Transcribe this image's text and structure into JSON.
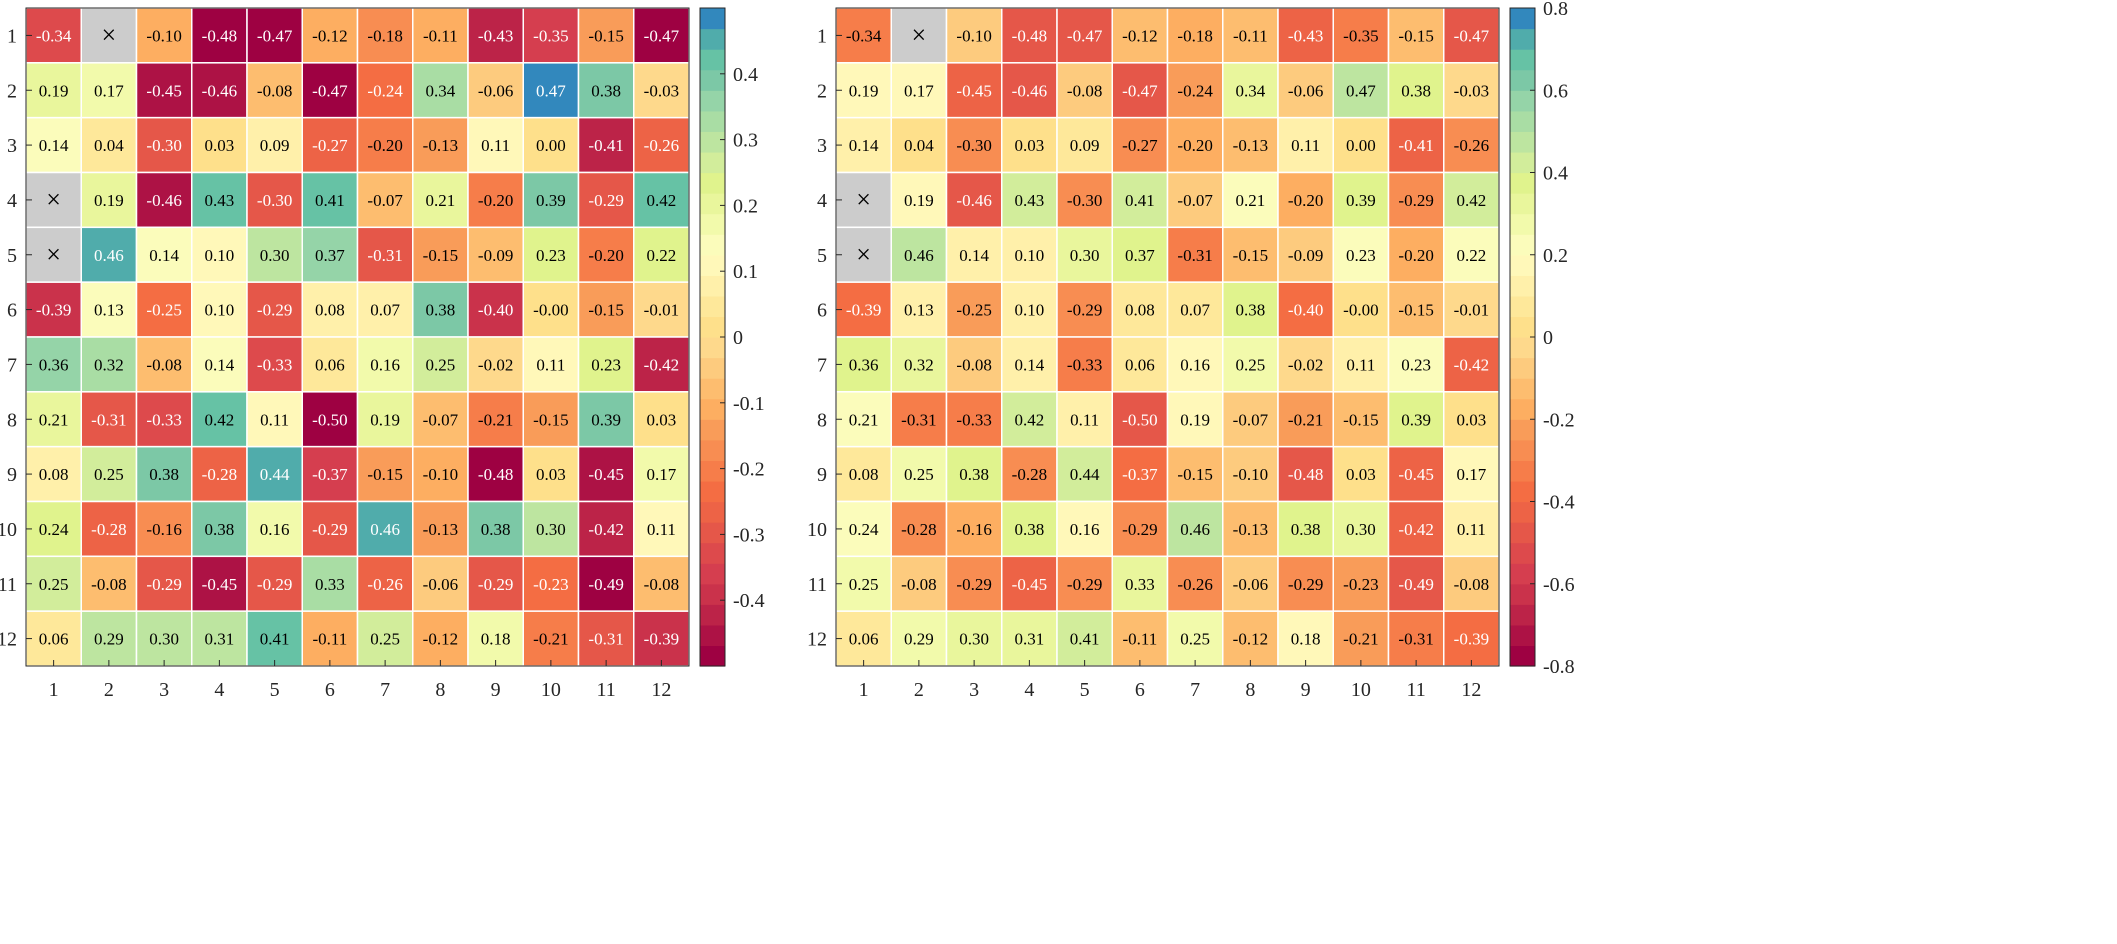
{
  "missing_mark": "×",
  "colormap": {
    "name": "Spectral (reversed)",
    "levels": 32,
    "colors": [
      "#9e0142",
      "#ad1245",
      "#bc2348",
      "#ca324b",
      "#d53e4f",
      "#dd4a4c",
      "#e55749",
      "#ed6346",
      "#f46d43",
      "#f67d4a",
      "#f88d52",
      "#f99c59",
      "#fdae61",
      "#fdbd6f",
      "#fdcb7e",
      "#fed98c",
      "#fee08b",
      "#fee89a",
      "#fff0aa",
      "#fff8b9",
      "#fbfcbb",
      "#f2faab",
      "#e9f69c",
      "#e0f38d",
      "#d2ed9b",
      "#bde5a0",
      "#a9dda4",
      "#95d4a8",
      "#7cc8a6",
      "#66c2a5",
      "#50acab",
      "#3288bd"
    ]
  },
  "chart_data": [
    {
      "type": "heatmap",
      "title": "",
      "xlabel": "",
      "ylabel": "",
      "x_ticks": [
        "1",
        "2",
        "3",
        "4",
        "5",
        "6",
        "7",
        "8",
        "9",
        "10",
        "11",
        "12"
      ],
      "y_ticks": [
        "1",
        "2",
        "3",
        "4",
        "5",
        "6",
        "7",
        "8",
        "9",
        "10",
        "11",
        "12"
      ],
      "clim": [
        -0.5,
        0.5
      ],
      "colorbar_ticks": [
        "0.4",
        "0.3",
        "0.2",
        "0.1",
        "0",
        "-0.1",
        "-0.2",
        "-0.3",
        "-0.4"
      ],
      "colorbar_tick_values": [
        0.4,
        0.3,
        0.2,
        0.1,
        0,
        -0.1,
        -0.2,
        -0.3,
        -0.4
      ],
      "labels": [
        [
          "-0.34",
          "×",
          "-0.10",
          "-0.48",
          "-0.47",
          "-0.12",
          "-0.18",
          "-0.11",
          "-0.43",
          "-0.35",
          "-0.15",
          "-0.47"
        ],
        [
          "0.19",
          "0.17",
          "-0.45",
          "-0.46",
          "-0.08",
          "-0.47",
          "-0.24",
          "0.34",
          "-0.06",
          "0.47",
          "0.38",
          "-0.03"
        ],
        [
          "0.14",
          "0.04",
          "-0.30",
          "0.03",
          "0.09",
          "-0.27",
          "-0.20",
          "-0.13",
          "0.11",
          "0.00",
          "-0.41",
          "-0.26"
        ],
        [
          "×",
          "0.19",
          "-0.46",
          "0.43",
          "-0.30",
          "0.41",
          "-0.07",
          "0.21",
          "-0.20",
          "0.39",
          "-0.29",
          "0.42"
        ],
        [
          "×",
          "0.46",
          "0.14",
          "0.10",
          "0.30",
          "0.37",
          "-0.31",
          "-0.15",
          "-0.09",
          "0.23",
          "-0.20",
          "0.22"
        ],
        [
          "-0.39",
          "0.13",
          "-0.25",
          "0.10",
          "-0.29",
          "0.08",
          "0.07",
          "0.38",
          "-0.40",
          "-0.00",
          "-0.15",
          "-0.01"
        ],
        [
          "0.36",
          "0.32",
          "-0.08",
          "0.14",
          "-0.33",
          "0.06",
          "0.16",
          "0.25",
          "-0.02",
          "0.11",
          "0.23",
          "-0.42"
        ],
        [
          "0.21",
          "-0.31",
          "-0.33",
          "0.42",
          "0.11",
          "-0.50",
          "0.19",
          "-0.07",
          "-0.21",
          "-0.15",
          "0.39",
          "0.03"
        ],
        [
          "0.08",
          "0.25",
          "0.38",
          "-0.28",
          "0.44",
          "-0.37",
          "-0.15",
          "-0.10",
          "-0.48",
          "0.03",
          "-0.45",
          "0.17"
        ],
        [
          "0.24",
          "-0.28",
          "-0.16",
          "0.38",
          "0.16",
          "-0.29",
          "0.46",
          "-0.13",
          "0.38",
          "0.30",
          "-0.42",
          "0.11"
        ],
        [
          "0.25",
          "-0.08",
          "-0.29",
          "-0.45",
          "-0.29",
          "0.33",
          "-0.26",
          "-0.06",
          "-0.29",
          "-0.23",
          "-0.49",
          "-0.08"
        ],
        [
          "0.06",
          "0.29",
          "0.30",
          "0.31",
          "0.41",
          "-0.11",
          "0.25",
          "-0.12",
          "0.18",
          "-0.21",
          "-0.31",
          "-0.39"
        ]
      ]
    },
    {
      "type": "heatmap",
      "title": "",
      "xlabel": "",
      "ylabel": "",
      "x_ticks": [
        "1",
        "2",
        "3",
        "4",
        "5",
        "6",
        "7",
        "8",
        "9",
        "10",
        "11",
        "12"
      ],
      "y_ticks": [
        "1",
        "2",
        "3",
        "4",
        "5",
        "6",
        "7",
        "8",
        "9",
        "10",
        "11",
        "12"
      ],
      "clim": [
        -0.8,
        0.8
      ],
      "colorbar_ticks": [
        "0.8",
        "0.6",
        "0.4",
        "0.2",
        "0",
        "-0.2",
        "-0.4",
        "-0.6",
        "-0.8"
      ],
      "colorbar_tick_values": [
        0.8,
        0.6,
        0.4,
        0.2,
        0,
        -0.2,
        -0.4,
        -0.6,
        -0.8
      ],
      "labels": [
        [
          "-0.34",
          "×",
          "-0.10",
          "-0.48",
          "-0.47",
          "-0.12",
          "-0.18",
          "-0.11",
          "-0.43",
          "-0.35",
          "-0.15",
          "-0.47"
        ],
        [
          "0.19",
          "0.17",
          "-0.45",
          "-0.46",
          "-0.08",
          "-0.47",
          "-0.24",
          "0.34",
          "-0.06",
          "0.47",
          "0.38",
          "-0.03"
        ],
        [
          "0.14",
          "0.04",
          "-0.30",
          "0.03",
          "0.09",
          "-0.27",
          "-0.20",
          "-0.13",
          "0.11",
          "0.00",
          "-0.41",
          "-0.26"
        ],
        [
          "×",
          "0.19",
          "-0.46",
          "0.43",
          "-0.30",
          "0.41",
          "-0.07",
          "0.21",
          "-0.20",
          "0.39",
          "-0.29",
          "0.42"
        ],
        [
          "×",
          "0.46",
          "0.14",
          "0.10",
          "0.30",
          "0.37",
          "-0.31",
          "-0.15",
          "-0.09",
          "0.23",
          "-0.20",
          "0.22"
        ],
        [
          "-0.39",
          "0.13",
          "-0.25",
          "0.10",
          "-0.29",
          "0.08",
          "0.07",
          "0.38",
          "-0.40",
          "-0.00",
          "-0.15",
          "-0.01"
        ],
        [
          "0.36",
          "0.32",
          "-0.08",
          "0.14",
          "-0.33",
          "0.06",
          "0.16",
          "0.25",
          "-0.02",
          "0.11",
          "0.23",
          "-0.42"
        ],
        [
          "0.21",
          "-0.31",
          "-0.33",
          "0.42",
          "0.11",
          "-0.50",
          "0.19",
          "-0.07",
          "-0.21",
          "-0.15",
          "0.39",
          "0.03"
        ],
        [
          "0.08",
          "0.25",
          "0.38",
          "-0.28",
          "0.44",
          "-0.37",
          "-0.15",
          "-0.10",
          "-0.48",
          "0.03",
          "-0.45",
          "0.17"
        ],
        [
          "0.24",
          "-0.28",
          "-0.16",
          "0.38",
          "0.16",
          "-0.29",
          "0.46",
          "-0.13",
          "0.38",
          "0.30",
          "-0.42",
          "0.11"
        ],
        [
          "0.25",
          "-0.08",
          "-0.29",
          "-0.45",
          "-0.29",
          "0.33",
          "-0.26",
          "-0.06",
          "-0.29",
          "-0.23",
          "-0.49",
          "-0.08"
        ],
        [
          "0.06",
          "0.29",
          "0.30",
          "0.31",
          "0.41",
          "-0.11",
          "0.25",
          "-0.12",
          "0.18",
          "-0.21",
          "-0.31",
          "-0.39"
        ]
      ]
    }
  ]
}
